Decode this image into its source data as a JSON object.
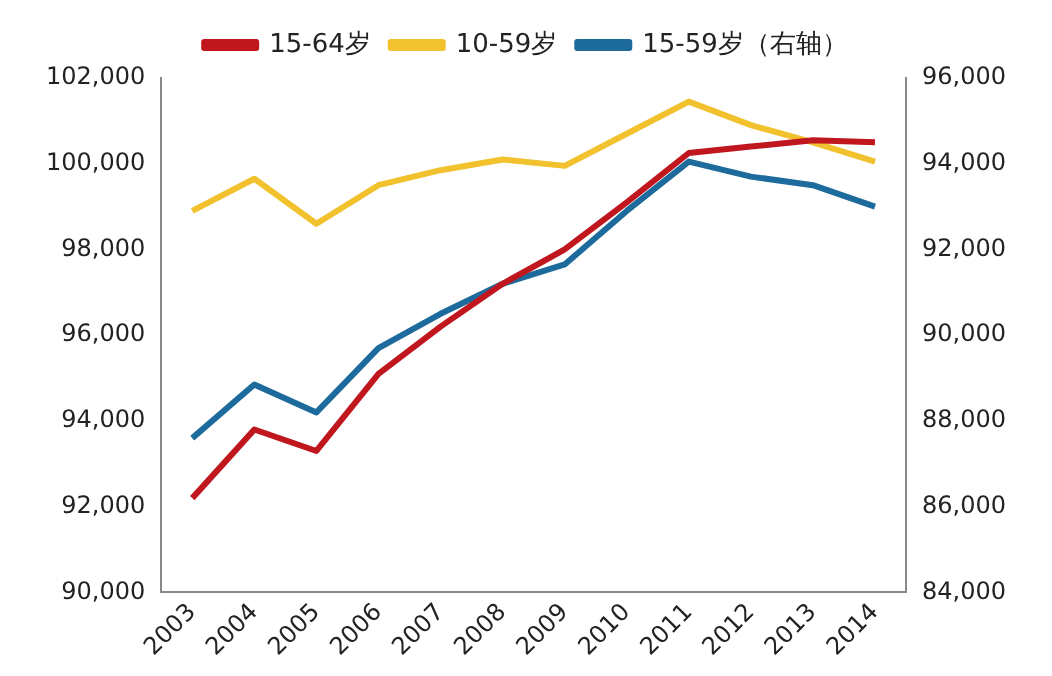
{
  "chart_data": {
    "type": "line",
    "categories": [
      "2003",
      "2004",
      "2005",
      "2006",
      "2007",
      "2008",
      "2009",
      "2010",
      "2011",
      "2012",
      "2013",
      "2014"
    ],
    "series": [
      {
        "name": "15-64岁",
        "color": "#c0161e",
        "values": [
          92200,
          93800,
          93300,
          95100,
          96200,
          97200,
          98000,
          99100,
          100250,
          100400,
          100550,
          100500
        ]
      },
      {
        "name": "10-59岁",
        "color": "#f2c12e",
        "values": [
          98900,
          99650,
          98600,
          99500,
          99850,
          100100,
          99950,
          100700,
          101450,
          100900,
          100500,
          100050
        ]
      },
      {
        "name": "15-59岁（右轴）",
        "color": "#1d6a9c",
        "axis": "y2",
        "values": [
          87600,
          88850,
          88200,
          89700,
          90500,
          91200,
          91650,
          92900,
          94050,
          93700,
          93500,
          93000
        ]
      }
    ],
    "ylim": [
      90000,
      102000
    ],
    "yticks": [
      {
        "value": 90000,
        "label": "90,000"
      },
      {
        "value": 92000,
        "label": "92,000"
      },
      {
        "value": 94000,
        "label": "94,000"
      },
      {
        "value": 96000,
        "label": "96,000"
      },
      {
        "value": 98000,
        "label": "98,000"
      },
      {
        "value": 100000,
        "label": "100,000"
      },
      {
        "value": 102000,
        "label": "102,000"
      }
    ],
    "y2lim": [
      84000,
      96000
    ],
    "y2ticks": [
      {
        "value": 84000,
        "label": "84,000"
      },
      {
        "value": 86000,
        "label": "86,000"
      },
      {
        "value": 88000,
        "label": "88,000"
      },
      {
        "value": 90000,
        "label": "90,000"
      },
      {
        "value": 92000,
        "label": "92,000"
      },
      {
        "value": 94000,
        "label": "94,000"
      },
      {
        "value": 96000,
        "label": "96,000"
      }
    ],
    "grid": false,
    "legend": "top",
    "marker": "none",
    "line_style": "solid"
  }
}
